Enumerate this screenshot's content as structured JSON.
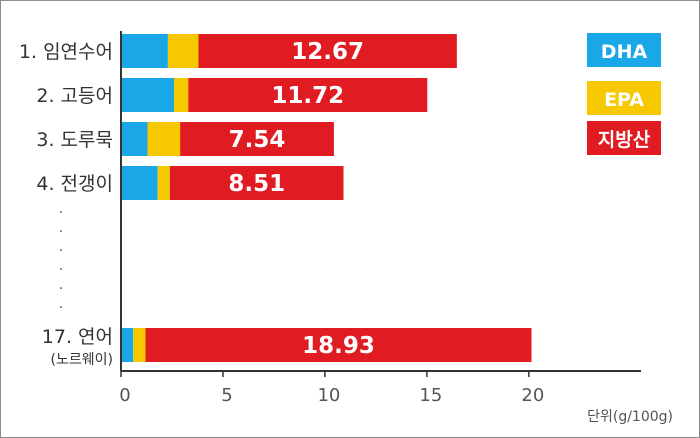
{
  "chart_data": {
    "type": "bar",
    "orientation": "horizontal",
    "stacked": true,
    "categories": [
      {
        "label": "1. 임연수어",
        "sublabel": "",
        "values": {
          "DHA": 2.3,
          "EPA": 1.5,
          "지방산": 12.67
        },
        "total_label": "12.67"
      },
      {
        "label": "2. 고등어",
        "sublabel": "",
        "values": {
          "DHA": 2.6,
          "EPA": 0.7,
          "지방산": 11.72
        },
        "total_label": "11.72"
      },
      {
        "label": "3. 도루묵",
        "sublabel": "",
        "values": {
          "DHA": 1.3,
          "EPA": 1.6,
          "지방산": 7.54
        },
        "total_label": "7.54"
      },
      {
        "label": "4. 전갱이",
        "sublabel": "",
        "values": {
          "DHA": 1.8,
          "EPA": 0.6,
          "지방산": 8.51
        },
        "total_label": "8.51"
      },
      {
        "label": "17. 연어",
        "sublabel": "(노르웨이)",
        "values": {
          "DHA": 0.6,
          "EPA": 0.6,
          "지방산": 18.93
        },
        "total_label": "18.93"
      }
    ],
    "series": [
      {
        "name": "DHA",
        "color": "#1aa7e8"
      },
      {
        "name": "EPA",
        "color": "#f5c800"
      },
      {
        "name": "지방산",
        "color": "#e01b22"
      }
    ],
    "ellipsis_dots": [
      ".",
      ".",
      ".",
      ".",
      ".",
      "."
    ],
    "xticks": [
      "0",
      "5",
      "10",
      "15",
      "20"
    ],
    "xtick_values": [
      0,
      5,
      10,
      15,
      20
    ],
    "xlim": [
      0,
      25.5
    ],
    "unit": "단위(g/100g)",
    "legend_position": "top-right",
    "grid": false
  }
}
